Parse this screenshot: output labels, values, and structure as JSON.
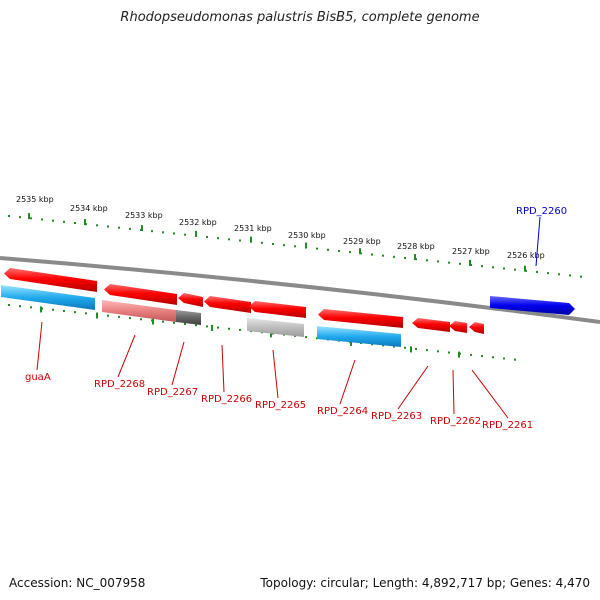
{
  "title": "Rhodopseudomonas palustris BisB5, complete genome",
  "footer": {
    "accession": "Accession: NC_007958",
    "summary": "Topology: circular; Length: 4,892,717 bp; Genes: 4,470"
  },
  "colors": {
    "axis": "#8a8a8a",
    "ticks": "#228b22",
    "forward_gene": "#ff0000",
    "forward_label": "#cc0000",
    "blue_gene": "#0000ee",
    "blue_label": "#0000cc",
    "cds_cyan": "#22aaee",
    "pseudo_pink": "#e88080",
    "grey_dark": "#666666",
    "grey_light": "#bdbdbd"
  },
  "kbp_labels": [
    "2535 kbp",
    "2534 kbp",
    "2533 kbp",
    "2532 kbp",
    "2531 kbp",
    "2530 kbp",
    "2529 kbp",
    "2528 kbp",
    "2527 kbp",
    "2526 kbp"
  ],
  "genes": [
    {
      "name": "guaA",
      "color": "red"
    },
    {
      "name": "RPD_2268",
      "color": "red"
    },
    {
      "name": "RPD_2267",
      "color": "red"
    },
    {
      "name": "RPD_2266",
      "color": "red"
    },
    {
      "name": "RPD_2265",
      "color": "red"
    },
    {
      "name": "RPD_2264",
      "color": "red"
    },
    {
      "name": "RPD_2263",
      "color": "red"
    },
    {
      "name": "RPD_2262",
      "color": "red"
    },
    {
      "name": "RPD_2261",
      "color": "red"
    },
    {
      "name": "RPD_2260",
      "color": "blue"
    }
  ]
}
